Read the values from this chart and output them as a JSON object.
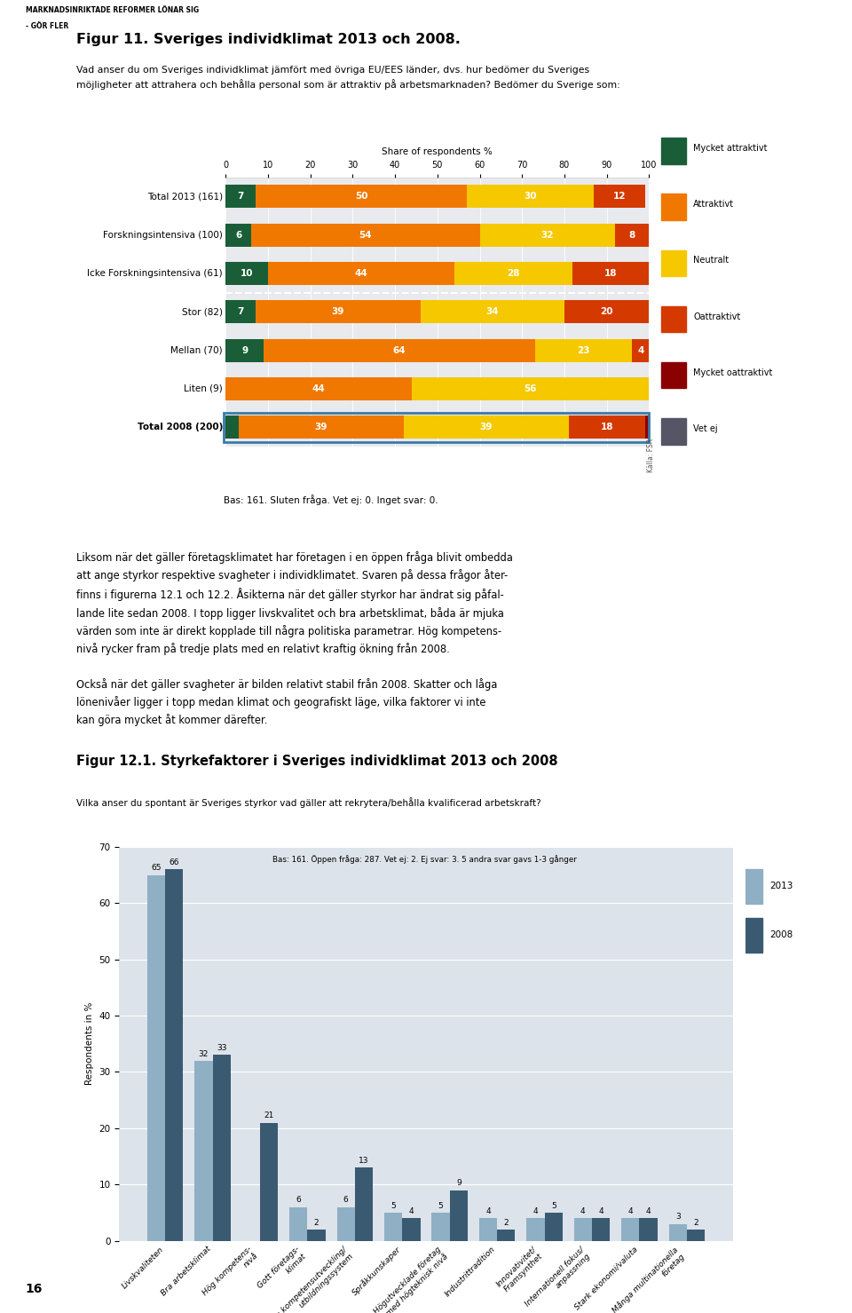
{
  "page_title_line1": "MARKNADSINRIKTADE REFORMER LÖNAR SIG",
  "page_title_line2": "- GÖR FLER",
  "fig11_title": "Figur 11. Sveriges individklimat 2013 och 2008.",
  "fig11_subtitle": "Vad anser du om Sveriges individklimat jämfört med övriga EU/EES länder, dvs. hur bedömer du Sveriges\nmöjligheter att attrahera och behålla personal som är attraktiv på arbetsmarknaden? Bedömer du Sverige som:",
  "chart_xlabel": "Share of respondents %",
  "chart_xticks": [
    0,
    10,
    20,
    30,
    40,
    50,
    60,
    70,
    80,
    90,
    100
  ],
  "rows": [
    {
      "label": "Total 2013 (161)",
      "values": [
        7,
        50,
        30,
        12,
        0,
        0
      ],
      "bold": false,
      "highlight": false
    },
    {
      "label": "Forskningsintensiva (100)",
      "values": [
        6,
        54,
        32,
        8,
        0,
        0
      ],
      "bold": false,
      "highlight": false
    },
    {
      "label": "Icke Forskningsintensiva (61)",
      "values": [
        10,
        44,
        28,
        18,
        0,
        0
      ],
      "bold": false,
      "highlight": false
    },
    {
      "label": "Stor (82)",
      "values": [
        7,
        39,
        34,
        20,
        0,
        0
      ],
      "bold": false,
      "highlight": false
    },
    {
      "label": "Mellan (70)",
      "values": [
        9,
        64,
        23,
        4,
        0,
        0
      ],
      "bold": false,
      "highlight": false
    },
    {
      "label": "Liten (9)",
      "values": [
        0,
        44,
        56,
        0,
        0,
        0
      ],
      "bold": false,
      "highlight": false
    },
    {
      "label": "Total 2008 (200)",
      "values": [
        3,
        39,
        39,
        18,
        2,
        0
      ],
      "bold": true,
      "highlight": true
    }
  ],
  "segment_colors": [
    "#1a5e38",
    "#f07800",
    "#f5c800",
    "#d43a00",
    "#8b0000",
    "#555566"
  ],
  "legend_labels": [
    "Mycket attraktivt",
    "Attraktivt",
    "Neutralt",
    "Oattraktivt",
    "Mycket oattraktivt",
    "Vet ej"
  ],
  "dashed_after_row": 2,
  "footnote": "Bas: 161. Sluten fråga. Vet ej: 0. Inget svar: 0.",
  "source_label": "Källa: FSR",
  "body_text_para1": "Liksom när det gäller företagsklimatet har företagen i en öppen fråga blivit ombedda\natt ange styrkor respektive svagheter i individklimatet. Svaren på dessa frågor åter-\nfinns i figurerna 12.1 och 12.2. Åsikterna när det gäller styrkor har ändrat sig påfal-\nlande lite sedan 2008. I topp ligger livskvalitet och bra arbetsklimat, båda är mjuka\nvärden som inte är direkt kopplade till några politiska parametrar. Hög kompetens-\nnivå rycker fram på tredje plats med en relativt kraftig ökning från 2008.",
  "body_text_para2": "Också när det gäller svagheter är bilden relativt stabil från 2008. Skatter och låga\nlönenivåer ligger i topp medan klimat och geografiskt läge, vilka faktorer vi inte\nkan göra mycket åt kommer därefter.",
  "fig12_title": "Figur 12.1. Styrkefaktorer i Sveriges individklimat 2013 och 2008",
  "fig12_subtitle": "Vilka anser du spontant är Sveriges styrkor vad gäller att rekrytera/behålla kvalificerad arbetskraft?",
  "fig12_footnote": "Bas: 161. Öppen fråga: 287. Vet ej: 2. Ej svar: 3. 5 andra svar gavs 1-3 gånger",
  "fig12_categories": [
    "Livskvaliteten",
    "Bra arbetsklimat",
    "Hög kompetens-\nnivå",
    "Gott företags-\nklimat",
    "Bra kompetensutveckling/\nutbildningssystem",
    "Språkkunskaper",
    "Högutvecklade företag\nmed högteknisk nivå",
    "Industrittradition",
    "Innovativitet/\nFramsynthet",
    "Internationell fokus/\nanpassning",
    "Stark ekonomi/valuta",
    "Många multinationella\nföretag"
  ],
  "fig12_values_2013": [
    65,
    32,
    0,
    6,
    6,
    5,
    5,
    4,
    4,
    4,
    4,
    3
  ],
  "fig12_values_2008": [
    66,
    33,
    21,
    2,
    13,
    4,
    9,
    2,
    5,
    4,
    4,
    2
  ],
  "fig12_color_2013": "#8fafc4",
  "fig12_color_2008": "#3a5a72",
  "fig12_ylabel": "Respondents in %",
  "fig12_ylim": [
    0,
    70
  ],
  "fig12_yticks": [
    0,
    10,
    20,
    30,
    40,
    50,
    60,
    70
  ],
  "chart_bg": "#e8eaed",
  "page_number": "16"
}
